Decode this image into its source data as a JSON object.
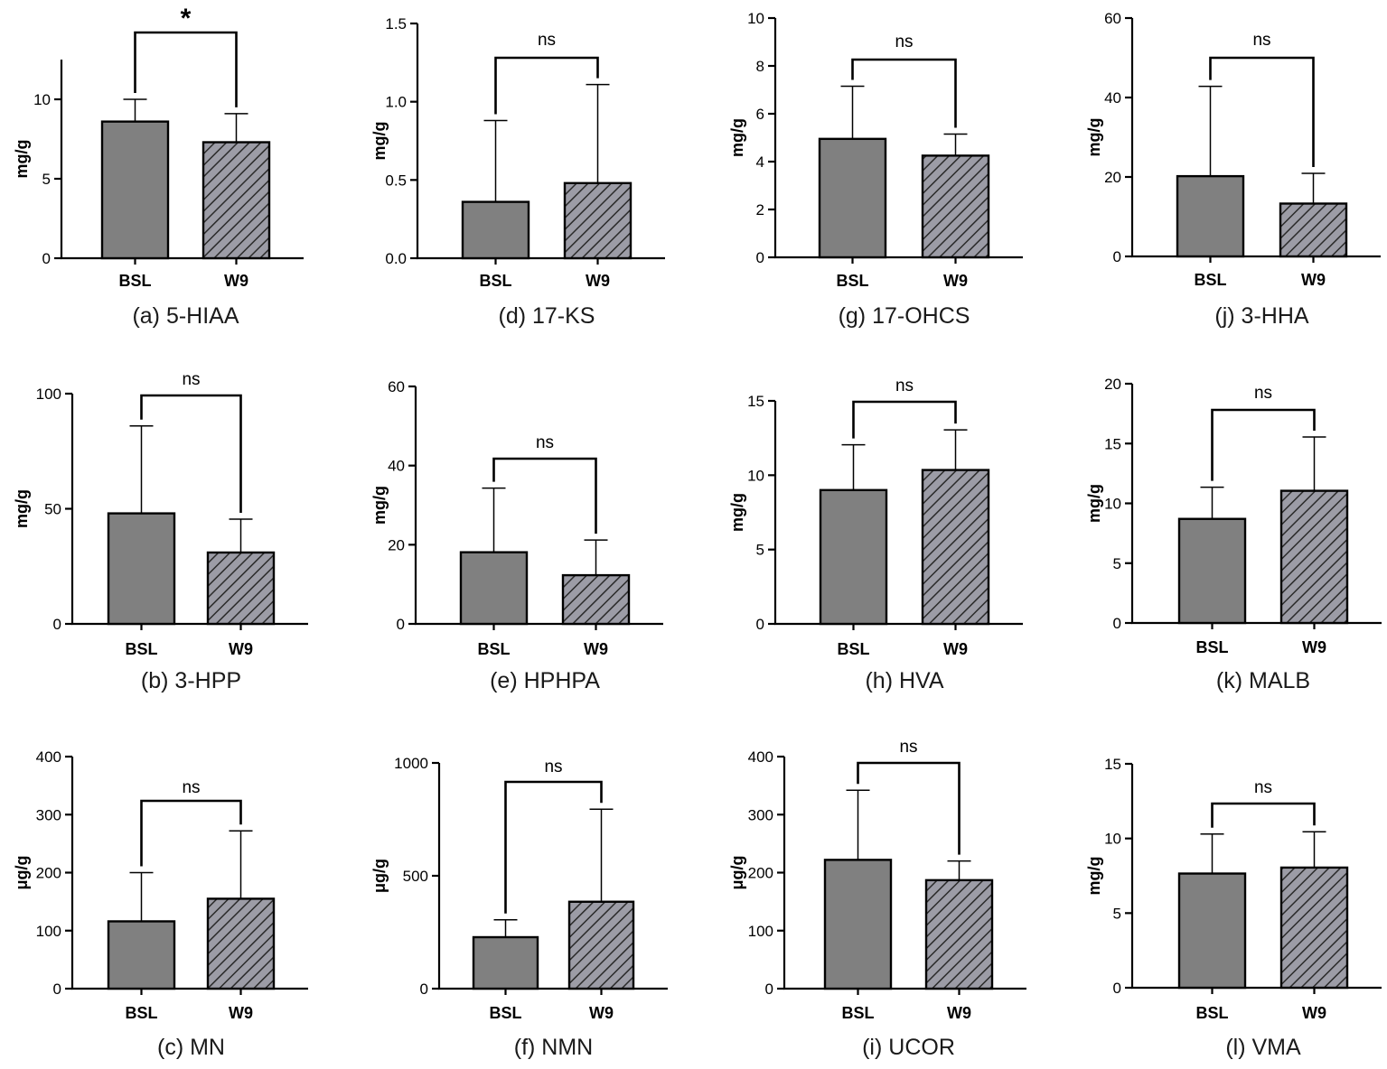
{
  "chart_data": [
    {
      "type": "bar",
      "panel": "a",
      "caption": "(a) 5-HIAA",
      "ylabel": "mg/g",
      "categories": [
        "BSL",
        "W9"
      ],
      "values": [
        8.6,
        7.3
      ],
      "errors": [
        10.0,
        9.1
      ],
      "ylim": [
        0,
        12.5
      ],
      "yticks": [
        0,
        5,
        10
      ],
      "ytick_labels": [
        "0",
        "5",
        "10"
      ],
      "significance": "*"
    },
    {
      "type": "bar",
      "panel": "d",
      "caption": "(d) 17-KS",
      "ylabel": "mg/g",
      "categories": [
        "BSL",
        "W9"
      ],
      "values": [
        0.36,
        0.48
      ],
      "errors": [
        0.88,
        1.11
      ],
      "ylim": [
        0,
        1.5
      ],
      "yticks": [
        0,
        0.5,
        1.0,
        1.5
      ],
      "ytick_labels": [
        "0.0",
        "0.5",
        "1.0",
        "1.5"
      ],
      "significance": "ns"
    },
    {
      "type": "bar",
      "panel": "g",
      "caption": "(g) 17-OHCS",
      "ylabel": "mg/g",
      "categories": [
        "BSL",
        "W9"
      ],
      "values": [
        4.95,
        4.25
      ],
      "errors": [
        7.15,
        5.15
      ],
      "ylim": [
        0,
        10
      ],
      "yticks": [
        0,
        2,
        4,
        6,
        8,
        10
      ],
      "ytick_labels": [
        "0",
        "2",
        "4",
        "6",
        "8",
        "10"
      ],
      "significance": "ns"
    },
    {
      "type": "bar",
      "panel": "j",
      "caption": "(j) 3-HHA",
      "ylabel": "mg/g",
      "categories": [
        "BSL",
        "W9"
      ],
      "values": [
        20.2,
        13.3
      ],
      "errors": [
        42.8,
        20.9
      ],
      "ylim": [
        0,
        60
      ],
      "yticks": [
        0,
        20,
        40,
        60
      ],
      "ytick_labels": [
        "0",
        "20",
        "40",
        "60"
      ],
      "significance": "ns"
    },
    {
      "type": "bar",
      "panel": "b",
      "caption": "(b) 3-HPP",
      "ylabel": "mg/g",
      "categories": [
        "BSL",
        "W9"
      ],
      "values": [
        48,
        31
      ],
      "errors": [
        86,
        45.5
      ],
      "ylim": [
        0,
        100
      ],
      "yticks": [
        0,
        50,
        100
      ],
      "ytick_labels": [
        "0",
        "50",
        "100"
      ],
      "significance": "ns"
    },
    {
      "type": "bar",
      "panel": "e",
      "caption": "(e) HPHPA",
      "ylabel": "mg/g",
      "categories": [
        "BSL",
        "W9"
      ],
      "values": [
        18.1,
        12.3
      ],
      "errors": [
        34.3,
        21.2
      ],
      "ylim": [
        0,
        60
      ],
      "yticks": [
        0,
        20,
        40,
        60
      ],
      "ytick_labels": [
        "0",
        "20",
        "40",
        "60"
      ],
      "significance": "ns"
    },
    {
      "type": "bar",
      "panel": "h",
      "caption": "(h) HVA",
      "ylabel": "mg/g",
      "categories": [
        "BSL",
        "W9"
      ],
      "values": [
        9.0,
        10.35
      ],
      "errors": [
        12.05,
        13.05
      ],
      "ylim": [
        0,
        15
      ],
      "yticks": [
        0,
        5,
        10,
        15
      ],
      "ytick_labels": [
        "0",
        "5",
        "10",
        "15"
      ],
      "significance": "ns"
    },
    {
      "type": "bar",
      "panel": "k",
      "caption": "(k) MALB",
      "ylabel": "mg/g",
      "categories": [
        "BSL",
        "W9"
      ],
      "values": [
        8.7,
        11.05
      ],
      "errors": [
        11.35,
        15.55
      ],
      "ylim": [
        0,
        20
      ],
      "yticks": [
        0,
        5,
        10,
        15,
        20
      ],
      "ytick_labels": [
        "0",
        "5",
        "10",
        "15",
        "20"
      ],
      "significance": "ns"
    },
    {
      "type": "bar",
      "panel": "c",
      "caption": "(c) MN",
      "ylabel": "μg/g",
      "categories": [
        "BSL",
        "W9"
      ],
      "values": [
        116,
        155
      ],
      "errors": [
        200,
        272
      ],
      "ylim": [
        0,
        400
      ],
      "yticks": [
        0,
        100,
        200,
        300,
        400
      ],
      "ytick_labels": [
        "0",
        "100",
        "200",
        "300",
        "400"
      ],
      "significance": "ns"
    },
    {
      "type": "bar",
      "panel": "f",
      "caption": "(f) NMN",
      "ylabel": "μg/g",
      "categories": [
        "BSL",
        "W9"
      ],
      "values": [
        228,
        385
      ],
      "errors": [
        305,
        795
      ],
      "ylim": [
        0,
        1000
      ],
      "yticks": [
        0,
        500,
        1000
      ],
      "ytick_labels": [
        "0",
        "500",
        "1000"
      ],
      "significance": "ns"
    },
    {
      "type": "bar",
      "panel": "i",
      "caption": "(i) UCOR",
      "ylabel": "μg/g",
      "categories": [
        "BSL",
        "W9"
      ],
      "values": [
        222,
        187
      ],
      "errors": [
        342,
        220
      ],
      "ylim": [
        0,
        400
      ],
      "yticks": [
        0,
        100,
        200,
        300,
        400
      ],
      "ytick_labels": [
        "0",
        "100",
        "200",
        "300",
        "400"
      ],
      "significance": "ns"
    },
    {
      "type": "bar",
      "panel": "l",
      "caption": "(l) VMA",
      "ylabel": "mg/g",
      "categories": [
        "BSL",
        "W9"
      ],
      "values": [
        7.65,
        8.05
      ],
      "errors": [
        10.3,
        10.45
      ],
      "ylim": [
        0,
        15
      ],
      "yticks": [
        0,
        5,
        10,
        15
      ],
      "ytick_labels": [
        "0",
        "5",
        "10",
        "15"
      ],
      "significance": "ns"
    }
  ],
  "colors": {
    "bar_fill": "#808080",
    "hatch_bg": "#9c9ca6",
    "hatch_line": "#2a2a2a",
    "axis": "#000000"
  }
}
